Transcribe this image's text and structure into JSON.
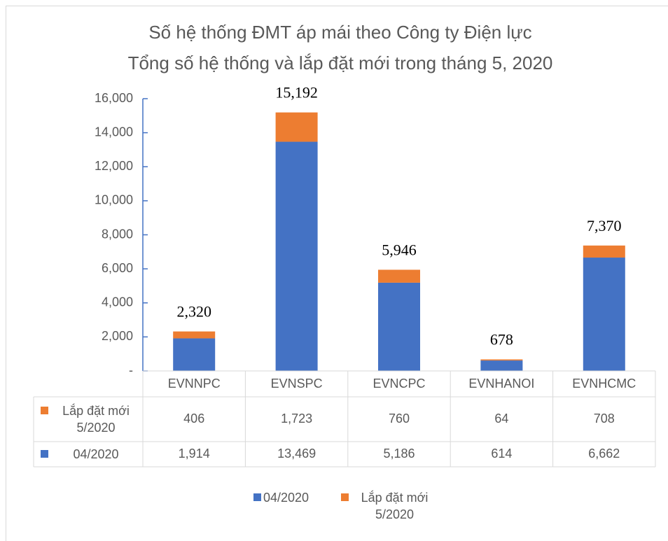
{
  "chart_data": {
    "type": "bar",
    "stacked": true,
    "title": "Số hệ thống ĐMT áp mái theo Công ty Điện lực",
    "subtitle": "Tổng số hệ thống và lắp đặt mới trong tháng 5, 2020",
    "categories": [
      "EVNNPC",
      "EVNSPC",
      "EVNCPC",
      "EVNHANOI",
      "EVNHCMC"
    ],
    "series": [
      {
        "name": "04/2020",
        "color": "#4472c4",
        "values": [
          1914,
          13469,
          5186,
          614,
          6662
        ],
        "value_labels": [
          "1,914",
          "13,469",
          "5,186",
          "614",
          "6,662"
        ]
      },
      {
        "name": "Lắp đặt mới 5/2020",
        "color": "#ed7d31",
        "values": [
          406,
          1723,
          760,
          64,
          708
        ],
        "value_labels": [
          "406",
          "1,723",
          "760",
          "64",
          "708"
        ]
      }
    ],
    "total_labels": [
      "2,320",
      "15,192",
      "5,946",
      "678",
      "7,370"
    ],
    "ylim": [
      0,
      16000
    ],
    "yticks": [
      {
        "value": 0,
        "label": "-"
      },
      {
        "value": 2000,
        "label": "2,000"
      },
      {
        "value": 4000,
        "label": "4,000"
      },
      {
        "value": 6000,
        "label": "6,000"
      },
      {
        "value": 8000,
        "label": "8,000"
      },
      {
        "value": 10000,
        "label": "10,000"
      },
      {
        "value": 12000,
        "label": "12,000"
      },
      {
        "value": 14000,
        "label": "14,000"
      },
      {
        "value": 16000,
        "label": "16,000"
      }
    ],
    "legend": "bottom",
    "data_table": true
  }
}
